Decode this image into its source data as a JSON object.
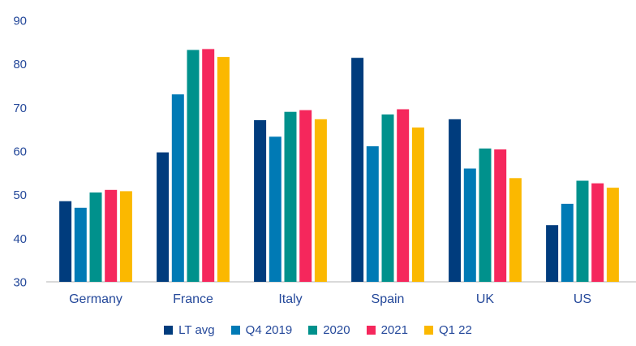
{
  "chart_data": {
    "type": "bar",
    "title": "",
    "xlabel": "",
    "ylabel": "",
    "categories": [
      "Germany",
      "France",
      "Italy",
      "Spain",
      "UK",
      "US"
    ],
    "series": [
      {
        "name": "LT avg",
        "color": "#003c7d",
        "values": [
          48.5,
          59.7,
          67.1,
          81.4,
          67.3,
          43.0
        ]
      },
      {
        "name": "Q4 2019",
        "color": "#007ab5",
        "values": [
          47.0,
          73.0,
          63.3,
          61.1,
          56.0,
          47.9
        ]
      },
      {
        "name": "2020",
        "color": "#00918c",
        "values": [
          50.5,
          83.2,
          69.0,
          68.4,
          60.6,
          53.2
        ]
      },
      {
        "name": "2021",
        "color": "#f5275c",
        "values": [
          51.1,
          83.4,
          69.4,
          69.6,
          60.4,
          52.6
        ]
      },
      {
        "name": "Q1 22",
        "color": "#fbb800",
        "values": [
          50.8,
          81.6,
          67.3,
          65.4,
          53.8,
          51.6
        ]
      }
    ],
    "ylim": [
      30,
      90
    ],
    "yticks": [
      90,
      80,
      70,
      60,
      50,
      40,
      30
    ],
    "grid": false,
    "legend_position": "bottom"
  },
  "style": {
    "text_color": "#24489a",
    "axis_line_color": "#d9d9d9",
    "background": "#ffffff"
  }
}
